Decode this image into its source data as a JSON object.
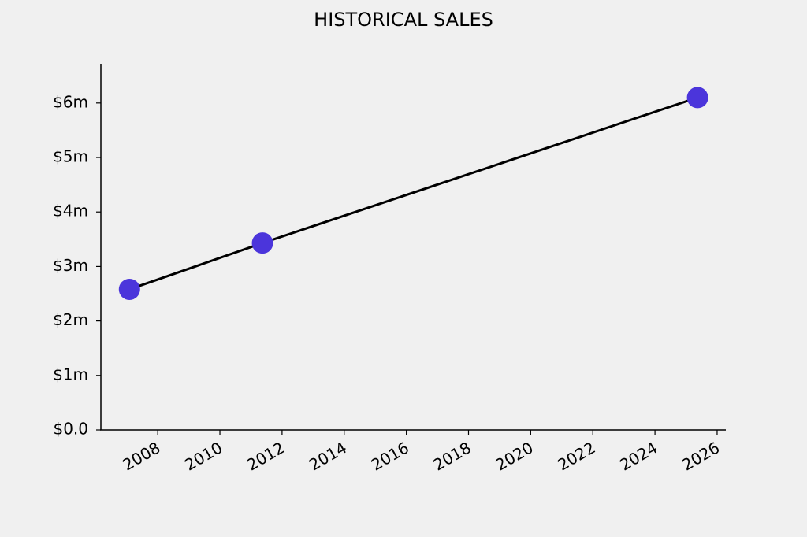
{
  "chart_data": {
    "type": "line",
    "title": "HISTORICAL SALES",
    "x": [
      2007.09,
      2011.37,
      2025.37
    ],
    "values": [
      2580000,
      3430000,
      6100000
    ],
    "line_color": "#000000",
    "marker_color": "#4b35db",
    "xlim": [
      2006.17,
      2026.28
    ],
    "xticks": [
      2008,
      2010,
      2012,
      2014,
      2016,
      2018,
      2020,
      2022,
      2024,
      2026
    ],
    "ylim": [
      0,
      6720000
    ],
    "yticks": [
      {
        "value": 0,
        "label": "$0.0"
      },
      {
        "value": 1000000,
        "label": "$1m"
      },
      {
        "value": 2000000,
        "label": "$2m"
      },
      {
        "value": 3000000,
        "label": "$3m"
      },
      {
        "value": 4000000,
        "label": "$4m"
      },
      {
        "value": 5000000,
        "label": "$5m"
      },
      {
        "value": 6000000,
        "label": "$6m"
      }
    ],
    "grid": false
  }
}
